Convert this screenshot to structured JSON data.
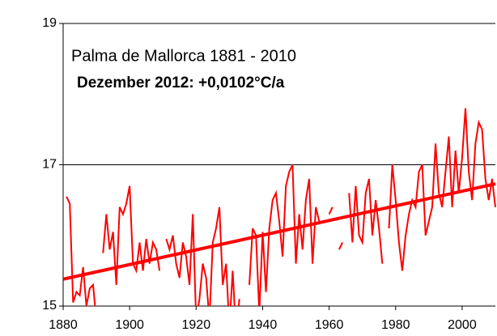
{
  "chart_data": {
    "type": "line",
    "annotations": [
      "Palma de Mallorca 1881 - 2010",
      "Dezember 2012: +0,0102°C/a"
    ],
    "xlim": [
      1880,
      2010
    ],
    "xticks": [
      1880,
      1900,
      1920,
      1940,
      1960,
      1980,
      2000
    ],
    "ylim": [
      15,
      19
    ],
    "yticks": [
      15,
      17,
      19
    ],
    "grid": true,
    "series": [
      {
        "color": "#ff0000",
        "x": [
          1881,
          1882,
          1883,
          1884,
          1885,
          1886,
          1887,
          1888,
          1889,
          1890,
          1891,
          1892,
          1893,
          1894,
          1895,
          1896,
          1897,
          1898,
          1899,
          1900,
          1901,
          1902,
          1903,
          1904,
          1905,
          1906,
          1907,
          1908,
          1909,
          1910,
          1911,
          1912,
          1913,
          1914,
          1915,
          1916,
          1917,
          1918,
          1919,
          1920,
          1921,
          1922,
          1923,
          1924,
          1925,
          1926,
          1927,
          1928,
          1929,
          1930,
          1931,
          1932,
          1933,
          1934,
          1935,
          1936,
          1937,
          1938,
          1939,
          1940,
          1941,
          1942,
          1943,
          1944,
          1945,
          1946,
          1947,
          1948,
          1949,
          1950,
          1951,
          1952,
          1953,
          1954,
          1955,
          1956,
          1957,
          1958,
          1959,
          1960,
          1961,
          1962,
          1963,
          1964,
          1965,
          1966,
          1967,
          1968,
          1969,
          1970,
          1971,
          1972,
          1973,
          1974,
          1975,
          1976,
          1977,
          1978,
          1979,
          1980,
          1981,
          1982,
          1983,
          1984,
          1985,
          1986,
          1987,
          1988,
          1989,
          1990,
          1991,
          1992,
          1993,
          1994,
          1995,
          1996,
          1997,
          1998,
          1999,
          2000,
          2001,
          2002,
          2003,
          2004,
          2005,
          2006,
          2007,
          2008,
          2009,
          2010
        ],
        "values": [
          16.55,
          16.45,
          15.05,
          15.2,
          15.15,
          15.55,
          15.0,
          15.25,
          15.3,
          14.8,
          null,
          15.75,
          16.3,
          15.8,
          16.05,
          15.3,
          16.4,
          16.3,
          16.45,
          16.7,
          15.6,
          15.5,
          15.9,
          15.5,
          15.95,
          15.6,
          15.9,
          15.8,
          15.5,
          null,
          15.95,
          15.8,
          16.0,
          15.6,
          15.4,
          15.9,
          15.7,
          15.3,
          16.3,
          14.8,
          15.1,
          15.6,
          15.4,
          14.8,
          15.9,
          16.1,
          16.4,
          15.3,
          15.6,
          14.7,
          15.5,
          14.6,
          15.1,
          null,
          null,
          15.3,
          16.1,
          16.0,
          14.9,
          16.05,
          15.2,
          16.1,
          16.5,
          16.6,
          16.2,
          15.7,
          16.7,
          16.9,
          17.0,
          15.6,
          16.3,
          15.8,
          16.5,
          16.8,
          15.6,
          16.4,
          16.2,
          null,
          null,
          16.3,
          16.4,
          null,
          15.8,
          15.9,
          null,
          16.6,
          15.9,
          16.7,
          16.0,
          15.9,
          16.6,
          16.8,
          16.0,
          16.5,
          16.1,
          15.6,
          null,
          16.1,
          17.0,
          16.5,
          15.9,
          15.5,
          16.0,
          16.3,
          16.5,
          16.4,
          16.9,
          17.0,
          16.0,
          16.2,
          16.4,
          17.3,
          16.6,
          16.4,
          16.9,
          17.4,
          16.4,
          17.2,
          16.6,
          17.1,
          17.8,
          16.9,
          16.5,
          17.3,
          17.6,
          17.5,
          16.8,
          16.5,
          16.8,
          16.4
        ]
      },
      {
        "color": "#ff0000",
        "x": [
          1880,
          2010
        ],
        "values": [
          15.38,
          16.73
        ]
      }
    ]
  }
}
